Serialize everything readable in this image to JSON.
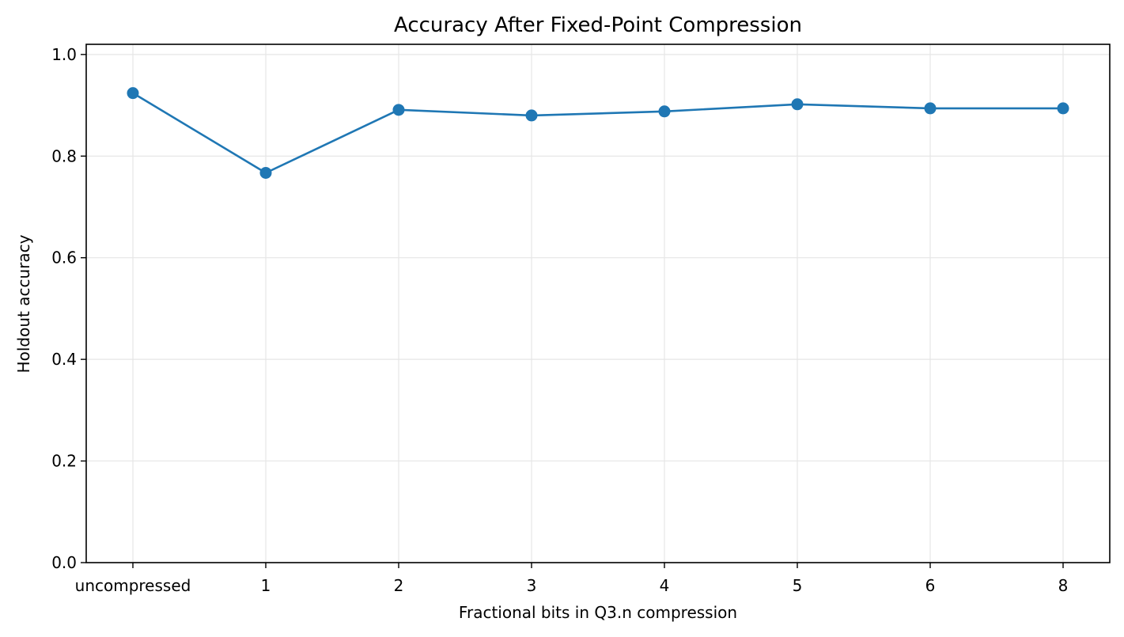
{
  "chart_data": {
    "type": "line",
    "title": "Accuracy After Fixed-Point Compression",
    "xlabel": "Fractional bits in Q3.n compression",
    "ylabel": "Holdout accuracy",
    "categories": [
      "uncompressed",
      "1",
      "2",
      "3",
      "4",
      "5",
      "6",
      "8"
    ],
    "series": [
      {
        "values": [
          0.924,
          0.767,
          0.891,
          0.88,
          0.888,
          0.902,
          0.894,
          0.894
        ],
        "color": "#1f77b4",
        "marker": "circle"
      }
    ],
    "ylim": [
      0.0,
      1.02
    ],
    "yticks": [
      "0.0",
      "0.2",
      "0.4",
      "0.6",
      "0.8",
      "1.0"
    ],
    "grid": true,
    "legend": "none"
  }
}
